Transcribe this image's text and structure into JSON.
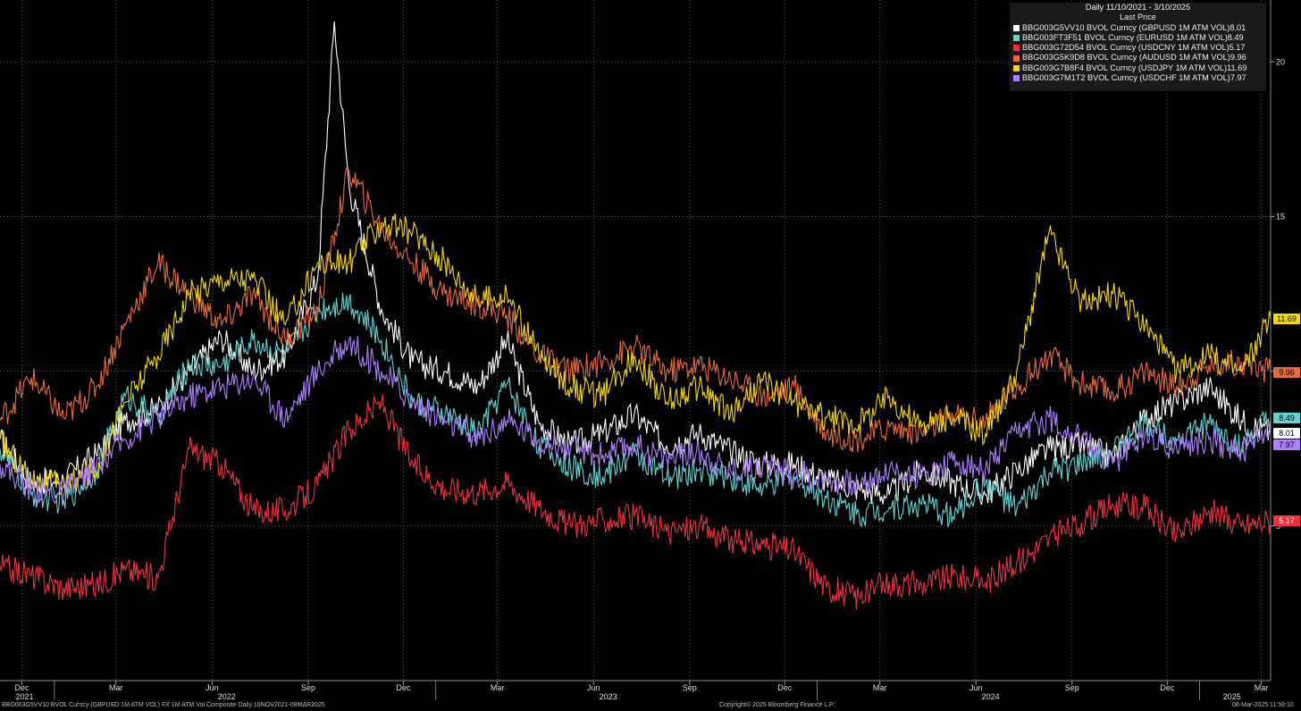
{
  "chart_data": {
    "type": "line",
    "title": "Daily 11/10/2021 - 3/10/2025",
    "subtitle": "Last Price",
    "ylim": [
      0,
      22
    ],
    "y_ticks": [
      5,
      10,
      15,
      20
    ],
    "y_tick_labels": [
      "5",
      "10",
      "15",
      "20"
    ],
    "grid": true,
    "legend_position": "top-right",
    "x_month_ticks": [
      {
        "date": "2021-12-01",
        "label": "Dec"
      },
      {
        "date": "2022-03-01",
        "label": "Mar"
      },
      {
        "date": "2022-06-01",
        "label": "Jun"
      },
      {
        "date": "2022-09-01",
        "label": "Sep"
      },
      {
        "date": "2022-12-01",
        "label": "Dec"
      },
      {
        "date": "2023-03-01",
        "label": "Mar"
      },
      {
        "date": "2023-06-01",
        "label": "Jun"
      },
      {
        "date": "2023-09-01",
        "label": "Sep"
      },
      {
        "date": "2023-12-01",
        "label": "Dec"
      },
      {
        "date": "2024-03-01",
        "label": "Mar"
      },
      {
        "date": "2024-06-01",
        "label": "Jun"
      },
      {
        "date": "2024-09-01",
        "label": "Sep"
      },
      {
        "date": "2024-12-01",
        "label": "Dec"
      },
      {
        "date": "2025-03-01",
        "label": "Mar"
      }
    ],
    "x_year_labels": [
      {
        "date": "2021-11-25",
        "label": "2021"
      },
      {
        "date": "2022-06-15",
        "label": "2022"
      },
      {
        "date": "2023-06-15",
        "label": "2023"
      },
      {
        "date": "2024-06-15",
        "label": "2024"
      },
      {
        "date": "2025-02-01",
        "label": "2025"
      }
    ],
    "x_start": "2021-11-10",
    "x_end": "2025-03-10",
    "series": [
      {
        "name": "BBG003G5VV10 BVOL Curncy (GBPUSD 1M ATM VOL)",
        "last": "8.01",
        "color": "#ffffff",
        "tag_text_color": "#000000",
        "points": [
          [
            "2021-11-10",
            7.8
          ],
          [
            "2021-12-10",
            6.4
          ],
          [
            "2022-01-10",
            6.5
          ],
          [
            "2022-02-10",
            7.3
          ],
          [
            "2022-03-10",
            8.4
          ],
          [
            "2022-04-10",
            8.8
          ],
          [
            "2022-05-10",
            10.0
          ],
          [
            "2022-06-10",
            11.1
          ],
          [
            "2022-07-10",
            10.0
          ],
          [
            "2022-08-10",
            10.5
          ],
          [
            "2022-09-10",
            13.0
          ],
          [
            "2022-09-26",
            21.3
          ],
          [
            "2022-10-10",
            16.0
          ],
          [
            "2022-11-10",
            12.0
          ],
          [
            "2022-12-10",
            10.3
          ],
          [
            "2023-01-10",
            10.0
          ],
          [
            "2023-02-10",
            9.5
          ],
          [
            "2023-03-10",
            11.0
          ],
          [
            "2023-04-10",
            8.3
          ],
          [
            "2023-05-10",
            7.6
          ],
          [
            "2023-06-10",
            8.0
          ],
          [
            "2023-07-10",
            8.6
          ],
          [
            "2023-08-10",
            7.6
          ],
          [
            "2023-09-10",
            8.0
          ],
          [
            "2023-10-10",
            7.4
          ],
          [
            "2023-11-10",
            7.0
          ],
          [
            "2023-12-10",
            7.0
          ],
          [
            "2024-01-10",
            6.5
          ],
          [
            "2024-02-10",
            6.2
          ],
          [
            "2024-03-10",
            6.0
          ],
          [
            "2024-04-10",
            6.8
          ],
          [
            "2024-05-10",
            6.4
          ],
          [
            "2024-06-10",
            6.0
          ],
          [
            "2024-07-10",
            6.8
          ],
          [
            "2024-08-10",
            7.5
          ],
          [
            "2024-09-10",
            7.6
          ],
          [
            "2024-10-10",
            7.2
          ],
          [
            "2024-11-10",
            8.5
          ],
          [
            "2024-12-10",
            9.0
          ],
          [
            "2025-01-10",
            9.5
          ],
          [
            "2025-02-10",
            8.4
          ],
          [
            "2025-03-10",
            8.0
          ]
        ]
      },
      {
        "name": "BBG003FT3F51 BVOL Curncy (EURUSD 1M ATM VOL)",
        "last": "8.49",
        "color": "#5fd4d4",
        "tag_text_color": "#000000",
        "points": [
          [
            "2021-11-10",
            7.5
          ],
          [
            "2021-12-10",
            6.0
          ],
          [
            "2022-01-10",
            5.8
          ],
          [
            "2022-02-10",
            6.8
          ],
          [
            "2022-03-10",
            9.2
          ],
          [
            "2022-04-10",
            8.5
          ],
          [
            "2022-05-10",
            10.2
          ],
          [
            "2022-06-10",
            10.2
          ],
          [
            "2022-07-10",
            11.0
          ],
          [
            "2022-08-10",
            10.5
          ],
          [
            "2022-09-10",
            12.0
          ],
          [
            "2022-10-10",
            12.3
          ],
          [
            "2022-11-10",
            11.0
          ],
          [
            "2022-12-10",
            9.0
          ],
          [
            "2023-01-10",
            8.6
          ],
          [
            "2023-02-10",
            8.0
          ],
          [
            "2023-03-10",
            9.6
          ],
          [
            "2023-04-10",
            7.6
          ],
          [
            "2023-05-10",
            6.9
          ],
          [
            "2023-06-10",
            6.6
          ],
          [
            "2023-07-10",
            7.4
          ],
          [
            "2023-08-10",
            6.5
          ],
          [
            "2023-09-10",
            6.8
          ],
          [
            "2023-10-10",
            6.6
          ],
          [
            "2023-11-10",
            6.2
          ],
          [
            "2023-12-10",
            6.6
          ],
          [
            "2024-01-10",
            5.9
          ],
          [
            "2024-02-10",
            5.4
          ],
          [
            "2024-03-10",
            5.6
          ],
          [
            "2024-04-10",
            5.7
          ],
          [
            "2024-05-10",
            5.3
          ],
          [
            "2024-06-10",
            6.4
          ],
          [
            "2024-07-10",
            5.5
          ],
          [
            "2024-08-10",
            6.7
          ],
          [
            "2024-09-10",
            7.0
          ],
          [
            "2024-10-10",
            7.4
          ],
          [
            "2024-11-10",
            8.3
          ],
          [
            "2024-12-10",
            7.8
          ],
          [
            "2025-01-10",
            8.3
          ],
          [
            "2025-02-10",
            7.5
          ],
          [
            "2025-03-10",
            8.5
          ]
        ]
      },
      {
        "name": "BBG003G72D54 BVOL Curncy (USDCNY 1M ATM VOL)",
        "last": "5.17",
        "color": "#f0303c",
        "tag_text_color": "#ffffff",
        "points": [
          [
            "2021-11-10",
            3.7
          ],
          [
            "2021-12-10",
            3.4
          ],
          [
            "2022-01-10",
            3.0
          ],
          [
            "2022-02-10",
            3.1
          ],
          [
            "2022-03-10",
            3.6
          ],
          [
            "2022-04-10",
            3.3
          ],
          [
            "2022-05-10",
            7.5
          ],
          [
            "2022-06-10",
            7.0
          ],
          [
            "2022-07-10",
            5.5
          ],
          [
            "2022-08-10",
            5.5
          ],
          [
            "2022-09-10",
            6.3
          ],
          [
            "2022-10-10",
            8.1
          ],
          [
            "2022-11-10",
            9.0
          ],
          [
            "2022-12-10",
            7.0
          ],
          [
            "2023-01-10",
            6.2
          ],
          [
            "2023-02-10",
            6.1
          ],
          [
            "2023-03-10",
            6.4
          ],
          [
            "2023-04-10",
            5.6
          ],
          [
            "2023-05-10",
            5.0
          ],
          [
            "2023-06-10",
            5.2
          ],
          [
            "2023-07-10",
            5.3
          ],
          [
            "2023-08-10",
            4.8
          ],
          [
            "2023-09-10",
            5.0
          ],
          [
            "2023-10-10",
            4.5
          ],
          [
            "2023-11-10",
            4.4
          ],
          [
            "2023-12-10",
            4.2
          ],
          [
            "2024-01-10",
            3.0
          ],
          [
            "2024-02-10",
            2.7
          ],
          [
            "2024-03-10",
            3.2
          ],
          [
            "2024-04-10",
            3.1
          ],
          [
            "2024-05-10",
            3.4
          ],
          [
            "2024-06-10",
            3.2
          ],
          [
            "2024-07-10",
            3.8
          ],
          [
            "2024-08-10",
            4.6
          ],
          [
            "2024-09-10",
            5.1
          ],
          [
            "2024-10-10",
            5.7
          ],
          [
            "2024-11-10",
            5.6
          ],
          [
            "2024-12-10",
            4.7
          ],
          [
            "2025-01-10",
            5.5
          ],
          [
            "2025-02-10",
            5.0
          ],
          [
            "2025-03-10",
            5.2
          ]
        ]
      },
      {
        "name": "BBG003G5K9D8 BVOL Curncy (AUDUSD 1M ATM VOL)",
        "last": "9.96",
        "color": "#e86a3a",
        "tag_text_color": "#000000",
        "points": [
          [
            "2021-11-10",
            8.4
          ],
          [
            "2021-12-10",
            9.8
          ],
          [
            "2022-01-10",
            8.5
          ],
          [
            "2022-02-10",
            9.5
          ],
          [
            "2022-03-10",
            11.5
          ],
          [
            "2022-04-10",
            13.5
          ],
          [
            "2022-05-10",
            12.5
          ],
          [
            "2022-06-10",
            11.5
          ],
          [
            "2022-07-10",
            12.5
          ],
          [
            "2022-08-10",
            11.0
          ],
          [
            "2022-09-10",
            12.0
          ],
          [
            "2022-10-10",
            16.5
          ],
          [
            "2022-11-10",
            14.6
          ],
          [
            "2022-12-10",
            13.5
          ],
          [
            "2023-01-10",
            12.5
          ],
          [
            "2023-02-10",
            12.2
          ],
          [
            "2023-03-10",
            11.8
          ],
          [
            "2023-04-10",
            10.5
          ],
          [
            "2023-05-10",
            10.0
          ],
          [
            "2023-06-10",
            10.3
          ],
          [
            "2023-07-10",
            10.8
          ],
          [
            "2023-08-10",
            10.0
          ],
          [
            "2023-09-10",
            10.2
          ],
          [
            "2023-10-10",
            9.8
          ],
          [
            "2023-11-10",
            9.2
          ],
          [
            "2023-12-10",
            9.5
          ],
          [
            "2024-01-10",
            8.0
          ],
          [
            "2024-02-10",
            7.8
          ],
          [
            "2024-03-10",
            8.2
          ],
          [
            "2024-04-10",
            8.0
          ],
          [
            "2024-05-10",
            8.6
          ],
          [
            "2024-06-10",
            8.4
          ],
          [
            "2024-07-10",
            9.5
          ],
          [
            "2024-08-10",
            10.5
          ],
          [
            "2024-09-10",
            9.6
          ],
          [
            "2024-10-10",
            9.3
          ],
          [
            "2024-11-10",
            10.0
          ],
          [
            "2024-12-10",
            9.5
          ],
          [
            "2025-01-10",
            10.2
          ],
          [
            "2025-02-10",
            10.3
          ],
          [
            "2025-03-10",
            10.0
          ]
        ]
      },
      {
        "name": "BBG003G7B8F4 BVOL Curncy (USDJPY 1M ATM VOL)",
        "last": "11.69",
        "color": "#f5d800",
        "tag_text_color": "#000000",
        "points": [
          [
            "2021-11-10",
            7.8
          ],
          [
            "2021-12-10",
            6.5
          ],
          [
            "2022-01-10",
            6.3
          ],
          [
            "2022-02-10",
            6.8
          ],
          [
            "2022-03-10",
            9.0
          ],
          [
            "2022-04-10",
            10.5
          ],
          [
            "2022-05-10",
            12.5
          ],
          [
            "2022-06-10",
            13.0
          ],
          [
            "2022-07-10",
            13.0
          ],
          [
            "2022-08-10",
            11.5
          ],
          [
            "2022-09-10",
            13.5
          ],
          [
            "2022-10-10",
            13.5
          ],
          [
            "2022-11-10",
            14.8
          ],
          [
            "2022-12-10",
            14.5
          ],
          [
            "2023-01-10",
            13.5
          ],
          [
            "2023-02-10",
            12.3
          ],
          [
            "2023-03-10",
            12.5
          ],
          [
            "2023-04-10",
            10.5
          ],
          [
            "2023-05-10",
            9.5
          ],
          [
            "2023-06-10",
            9.2
          ],
          [
            "2023-07-10",
            10.5
          ],
          [
            "2023-08-10",
            9.0
          ],
          [
            "2023-09-10",
            9.5
          ],
          [
            "2023-10-10",
            8.6
          ],
          [
            "2023-11-10",
            9.7
          ],
          [
            "2023-12-10",
            9.0
          ],
          [
            "2024-01-10",
            8.5
          ],
          [
            "2024-02-10",
            8.3
          ],
          [
            "2024-03-10",
            9.2
          ],
          [
            "2024-04-10",
            8.2
          ],
          [
            "2024-05-10",
            8.5
          ],
          [
            "2024-06-10",
            8.0
          ],
          [
            "2024-07-10",
            10.0
          ],
          [
            "2024-08-10",
            14.5
          ],
          [
            "2024-09-10",
            12.2
          ],
          [
            "2024-10-10",
            12.5
          ],
          [
            "2024-11-10",
            11.5
          ],
          [
            "2024-12-10",
            10.0
          ],
          [
            "2025-01-10",
            10.5
          ],
          [
            "2025-02-10",
            10.0
          ],
          [
            "2025-03-10",
            11.7
          ]
        ]
      },
      {
        "name": "BBG003G7M1T2 BVOL Curncy (USDCHF 1M ATM VOL)",
        "last": "7.97",
        "color": "#b07fff",
        "tag_text_color": "#000000",
        "points": [
          [
            "2021-11-10",
            7.0
          ],
          [
            "2021-12-10",
            6.2
          ],
          [
            "2022-01-10",
            6.0
          ],
          [
            "2022-02-10",
            6.9
          ],
          [
            "2022-03-10",
            7.8
          ],
          [
            "2022-04-10",
            8.5
          ],
          [
            "2022-05-10",
            9.2
          ],
          [
            "2022-06-10",
            9.5
          ],
          [
            "2022-07-10",
            9.8
          ],
          [
            "2022-08-10",
            8.5
          ],
          [
            "2022-09-10",
            10.0
          ],
          [
            "2022-10-10",
            11.0
          ],
          [
            "2022-11-10",
            10.0
          ],
          [
            "2022-12-10",
            9.0
          ],
          [
            "2023-01-10",
            8.4
          ],
          [
            "2023-02-10",
            7.8
          ],
          [
            "2023-03-10",
            8.4
          ],
          [
            "2023-04-10",
            7.8
          ],
          [
            "2023-05-10",
            7.5
          ],
          [
            "2023-06-10",
            7.3
          ],
          [
            "2023-07-10",
            7.6
          ],
          [
            "2023-08-10",
            7.2
          ],
          [
            "2023-09-10",
            7.4
          ],
          [
            "2023-10-10",
            6.8
          ],
          [
            "2023-11-10",
            7.0
          ],
          [
            "2023-12-10",
            6.7
          ],
          [
            "2024-01-10",
            6.5
          ],
          [
            "2024-02-10",
            6.3
          ],
          [
            "2024-03-10",
            6.8
          ],
          [
            "2024-04-10",
            6.6
          ],
          [
            "2024-05-10",
            7.1
          ],
          [
            "2024-06-10",
            6.8
          ],
          [
            "2024-07-10",
            8.0
          ],
          [
            "2024-08-10",
            8.5
          ],
          [
            "2024-09-10",
            7.8
          ],
          [
            "2024-10-10",
            7.0
          ],
          [
            "2024-11-10",
            8.0
          ],
          [
            "2024-12-10",
            7.5
          ],
          [
            "2025-01-10",
            7.8
          ],
          [
            "2025-02-10",
            7.4
          ],
          [
            "2025-03-10",
            8.0
          ]
        ]
      }
    ]
  },
  "footer": {
    "left": "BBG003G5VV10 BVOL Curncy (GBPUSD 1M ATM VOL) FX 1M ATM Vol Composite  Daily 10NOV2021-08MAR2025",
    "center": "Copyright© 2025 Bloomberg Finance L.P.",
    "right": "08-Mar-2025 11:59:10"
  }
}
